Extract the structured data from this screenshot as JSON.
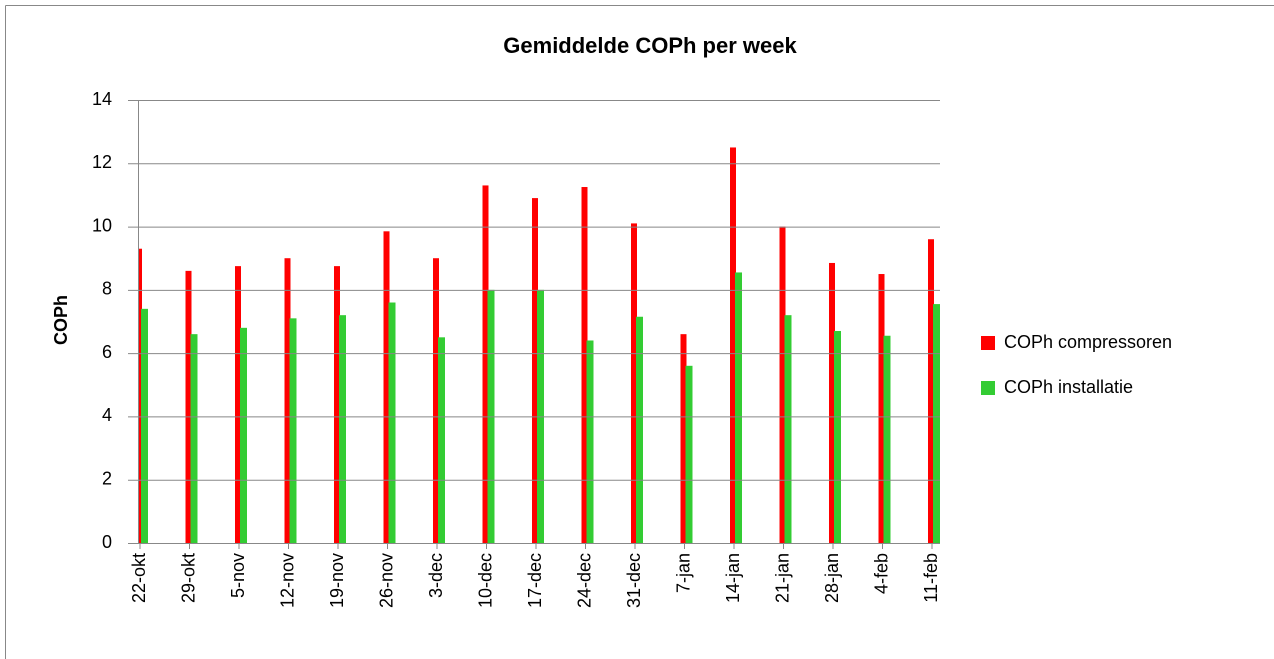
{
  "chart_data": {
    "type": "bar",
    "title": "Gemiddelde COPh per week",
    "y_label": "COPh",
    "categories": [
      "22-okt",
      "29-okt",
      "5-nov",
      "12-nov",
      "19-nov",
      "26-nov",
      "3-dec",
      "10-dec",
      "17-dec",
      "24-dec",
      "31-dec",
      "7-jan",
      "14-jan",
      "21-jan",
      "28-jan",
      "4-feb",
      "11-feb"
    ],
    "series": [
      {
        "name": "COPh compressoren",
        "color": "#ff0000",
        "values": [
          9.3,
          8.6,
          8.75,
          9.0,
          8.75,
          9.85,
          9.0,
          11.3,
          10.9,
          11.25,
          10.1,
          6.6,
          12.5,
          10.0,
          8.85,
          8.5,
          9.6
        ]
      },
      {
        "name": "COPh installatie",
        "color": "#33cc33",
        "values": [
          7.4,
          6.6,
          6.8,
          7.1,
          7.2,
          7.6,
          6.5,
          8.0,
          8.0,
          6.4,
          7.15,
          5.6,
          8.55,
          7.2,
          6.7,
          6.55,
          7.55
        ]
      }
    ],
    "ylim": [
      0,
      14
    ],
    "yticks": [
      0,
      2,
      4,
      6,
      8,
      10,
      12,
      14
    ],
    "grid": true,
    "legend": "right"
  }
}
